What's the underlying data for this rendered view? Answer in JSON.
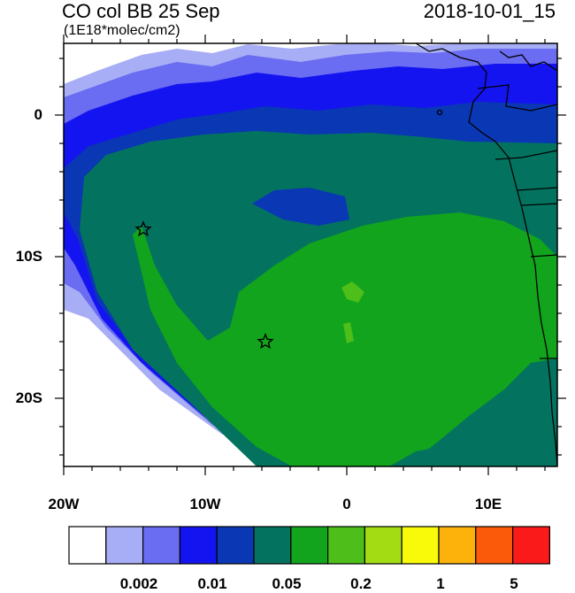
{
  "header": {
    "title": "CO col BB 25 Sep",
    "units": "(1E18*molec/cm2)",
    "datetime": "2018-10-01_15"
  },
  "axes": {
    "lat_labels": [
      "0",
      "10S",
      "20S"
    ],
    "lon_labels": [
      "20W",
      "10W",
      "0",
      "10E"
    ]
  },
  "colorbar": {
    "colors": [
      "#ffffff",
      "#a8aef5",
      "#6a6cf2",
      "#1414f0",
      "#0a37b3",
      "#03735f",
      "#12a41c",
      "#4dbe1a",
      "#a3dc12",
      "#f8fa0a",
      "#fcb20a",
      "#fb5a0a",
      "#fb1a1a"
    ],
    "labels": [
      "0.002",
      "0.01",
      "0.05",
      "0.2",
      "1",
      "5"
    ]
  },
  "map": {
    "palette": {
      "lightest_blue": "#a8aef5",
      "light_blue": "#6a6cf2",
      "blue": "#1414f0",
      "dark_blue": "#0a37b3",
      "teal": "#03735f",
      "green": "#12a41c",
      "light_green": "#4dbe1a",
      "coast": "#000000"
    },
    "markers": [
      "star",
      "star"
    ]
  }
}
